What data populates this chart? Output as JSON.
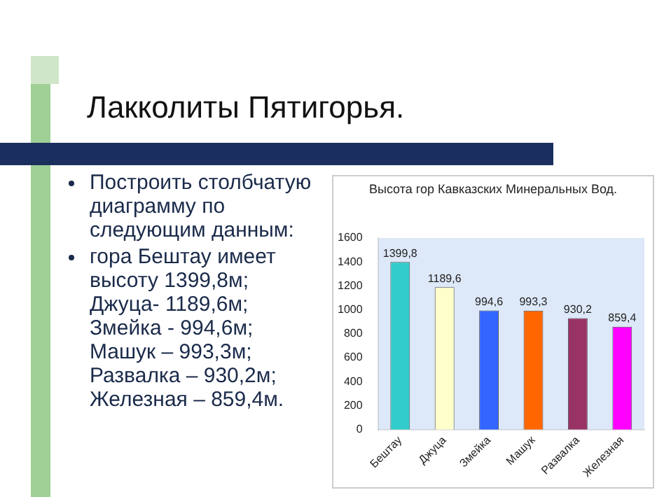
{
  "chart_data": {
    "type": "bar",
    "title": "Высота гор Кавказских Минеральных Вод.",
    "categories": [
      "Бештау",
      "Джуца",
      "Змейка",
      "Машук",
      "Развалка",
      "Железная"
    ],
    "values": [
      1399.8,
      1189.6,
      994.6,
      993.3,
      930.2,
      859.4
    ],
    "colors": [
      "#33cccc",
      "#ffffcc",
      "#3366ff",
      "#ff6600",
      "#993366",
      "#ff00ff"
    ],
    "value_labels": [
      "1399,8",
      "1189,6",
      "994,6",
      "993,3",
      "930,2",
      "859,4"
    ],
    "ylim": [
      0,
      1600
    ],
    "yticks": [
      0,
      200,
      400,
      600,
      800,
      1000,
      1200,
      1400,
      1600
    ],
    "grid": false,
    "legend": false,
    "annotations": [
      "Лакколиты Пятигорья.",
      "Построить столбчатую диаграмму по следующим данным:",
      "гора Бештау имеет высоту 1399,8м;\nДжуца- 1189,6м;\nЗмейка - 994,6м;\nМашук – 993,3м;\nРазвалка – 930,2м;\nЖелезная – 859,4м."
    ]
  }
}
